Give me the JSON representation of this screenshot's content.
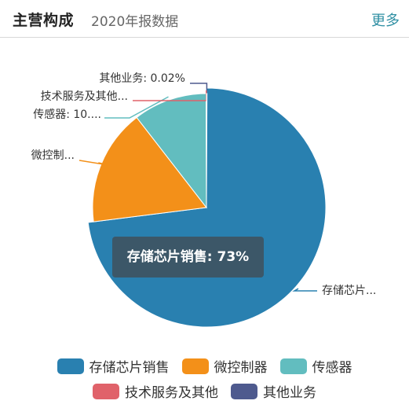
{
  "header": {
    "title": "主营构成",
    "subtitle": "2020年报数据",
    "more_label": "更多"
  },
  "tooltip": {
    "text": "存储芯片销售: 73%"
  },
  "chart_data": {
    "type": "pie",
    "series": [
      {
        "name": "存储芯片销售",
        "value": 73,
        "color": "#2980b0",
        "label": "存储芯片..."
      },
      {
        "name": "微控制器",
        "value": 16.5,
        "color": "#f39019",
        "label": "微控制..."
      },
      {
        "name": "传感器",
        "value": 10.45,
        "color": "#62bdbf",
        "label": "传感器: 10...."
      },
      {
        "name": "技术服务及其他",
        "value": 0.03,
        "color": "#e0626a",
        "label": "技术服务及其他..."
      },
      {
        "name": "其他业务",
        "value": 0.02,
        "color": "#4e5a8e",
        "label": "其他业务: 0.02%"
      }
    ],
    "highlighted": "存储芯片销售",
    "legend_position": "bottom"
  }
}
